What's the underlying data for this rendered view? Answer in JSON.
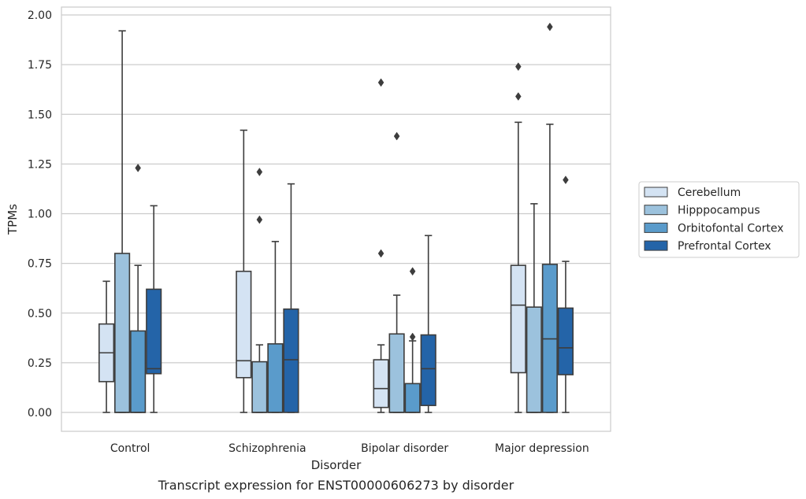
{
  "chart_data": {
    "type": "box",
    "xlabel": "Disorder",
    "ylabel": "TPMs",
    "caption": "Transcript expression for ENST00000606273 by disorder",
    "ylim": [
      -0.1,
      2.03
    ],
    "yticks": [
      "0.00",
      "0.25",
      "0.50",
      "0.75",
      "1.00",
      "1.25",
      "1.50",
      "1.75",
      "2.00"
    ],
    "grid": "horizontal",
    "legend_position": "right",
    "categories": [
      "Control",
      "Schizophrenia",
      "Bipolar disorder",
      "Major depression"
    ],
    "series": [
      {
        "name": "Cerebellum",
        "color": "#d4e3f3",
        "boxes": [
          {
            "whislo": 0.0,
            "q1": 0.155,
            "med": 0.3,
            "q3": 0.445,
            "whishi": 0.66,
            "fliers": []
          },
          {
            "whislo": 0.0,
            "q1": 0.175,
            "med": 0.26,
            "q3": 0.71,
            "whishi": 1.42,
            "fliers": []
          },
          {
            "whislo": 0.0,
            "q1": 0.025,
            "med": 0.12,
            "q3": 0.265,
            "whishi": 0.34,
            "fliers": [
              0.8,
              1.66
            ]
          },
          {
            "whislo": 0.0,
            "q1": 0.2,
            "med": 0.54,
            "q3": 0.74,
            "whishi": 1.46,
            "fliers": [
              1.59,
              1.74
            ]
          }
        ]
      },
      {
        "name": "Hipppocampus",
        "color": "#9cc2dd",
        "boxes": [
          {
            "whislo": 0.0,
            "q1": 0.0,
            "med": 0.0,
            "q3": 0.8,
            "whishi": 1.92,
            "fliers": []
          },
          {
            "whislo": 0.0,
            "q1": 0.0,
            "med": 0.0,
            "q3": 0.255,
            "whishi": 0.34,
            "fliers": [
              0.97,
              1.21
            ]
          },
          {
            "whislo": 0.0,
            "q1": 0.0,
            "med": 0.0,
            "q3": 0.395,
            "whishi": 0.59,
            "fliers": [
              1.39
            ]
          },
          {
            "whislo": 0.0,
            "q1": 0.0,
            "med": 0.0,
            "q3": 0.53,
            "whishi": 1.05,
            "fliers": []
          }
        ]
      },
      {
        "name": "Orbitofontal Cortex",
        "color": "#5a9bcb",
        "boxes": [
          {
            "whislo": 0.0,
            "q1": 0.0,
            "med": 0.0,
            "q3": 0.41,
            "whishi": 0.74,
            "fliers": [
              1.23
            ]
          },
          {
            "whislo": 0.0,
            "q1": 0.0,
            "med": 0.0,
            "q3": 0.345,
            "whishi": 0.86,
            "fliers": []
          },
          {
            "whislo": 0.0,
            "q1": 0.0,
            "med": 0.0,
            "q3": 0.145,
            "whishi": 0.36,
            "fliers": [
              0.38,
              0.71
            ]
          },
          {
            "whislo": 0.0,
            "q1": 0.0,
            "med": 0.37,
            "q3": 0.745,
            "whishi": 1.45,
            "fliers": [
              1.94
            ]
          }
        ]
      },
      {
        "name": "Prefrontal Cortex",
        "color": "#2464a8",
        "boxes": [
          {
            "whislo": 0.0,
            "q1": 0.195,
            "med": 0.22,
            "q3": 0.62,
            "whishi": 1.04,
            "fliers": []
          },
          {
            "whislo": 0.0,
            "q1": 0.0,
            "med": 0.265,
            "q3": 0.52,
            "whishi": 1.15,
            "fliers": []
          },
          {
            "whislo": 0.0,
            "q1": 0.035,
            "med": 0.22,
            "q3": 0.39,
            "whishi": 0.89,
            "fliers": []
          },
          {
            "whislo": 0.0,
            "q1": 0.19,
            "med": 0.325,
            "q3": 0.525,
            "whishi": 0.76,
            "fliers": [
              1.17
            ]
          }
        ]
      }
    ]
  }
}
